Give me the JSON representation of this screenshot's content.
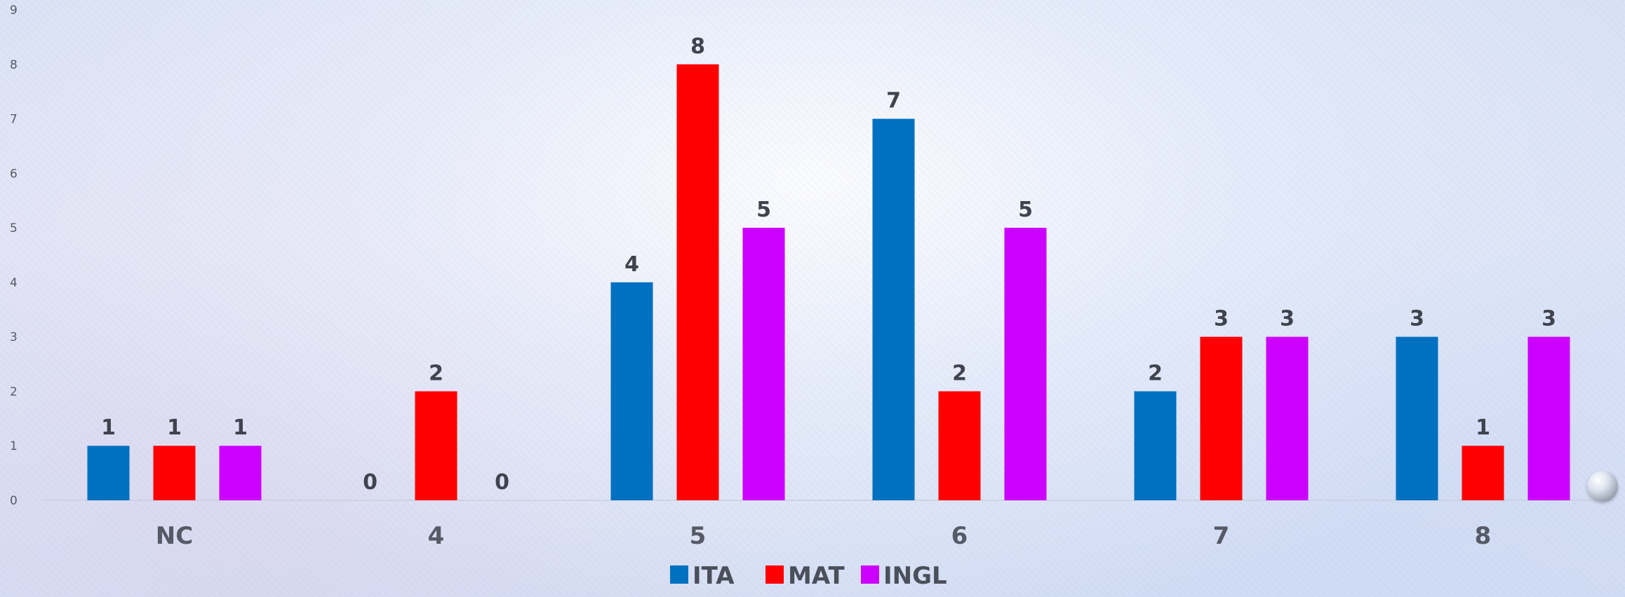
{
  "chart_data": {
    "type": "bar",
    "categories": [
      "NC",
      "4",
      "5",
      "6",
      "7",
      "8"
    ],
    "series": [
      {
        "name": "ITA",
        "color": "#0070C0",
        "values": [
          1,
          0,
          4,
          7,
          2,
          3
        ]
      },
      {
        "name": "MAT",
        "color": "#FF0000",
        "values": [
          1,
          2,
          8,
          2,
          3,
          1
        ]
      },
      {
        "name": "INGL",
        "color": "#CC00FF",
        "values": [
          1,
          0,
          5,
          5,
          3,
          3
        ]
      }
    ],
    "ylim": [
      0,
      9
    ],
    "yticks": [
      0,
      1,
      2,
      3,
      4,
      5,
      6,
      7,
      8,
      9
    ],
    "grid": false,
    "legend": "bottom-center",
    "data_labels": true
  }
}
